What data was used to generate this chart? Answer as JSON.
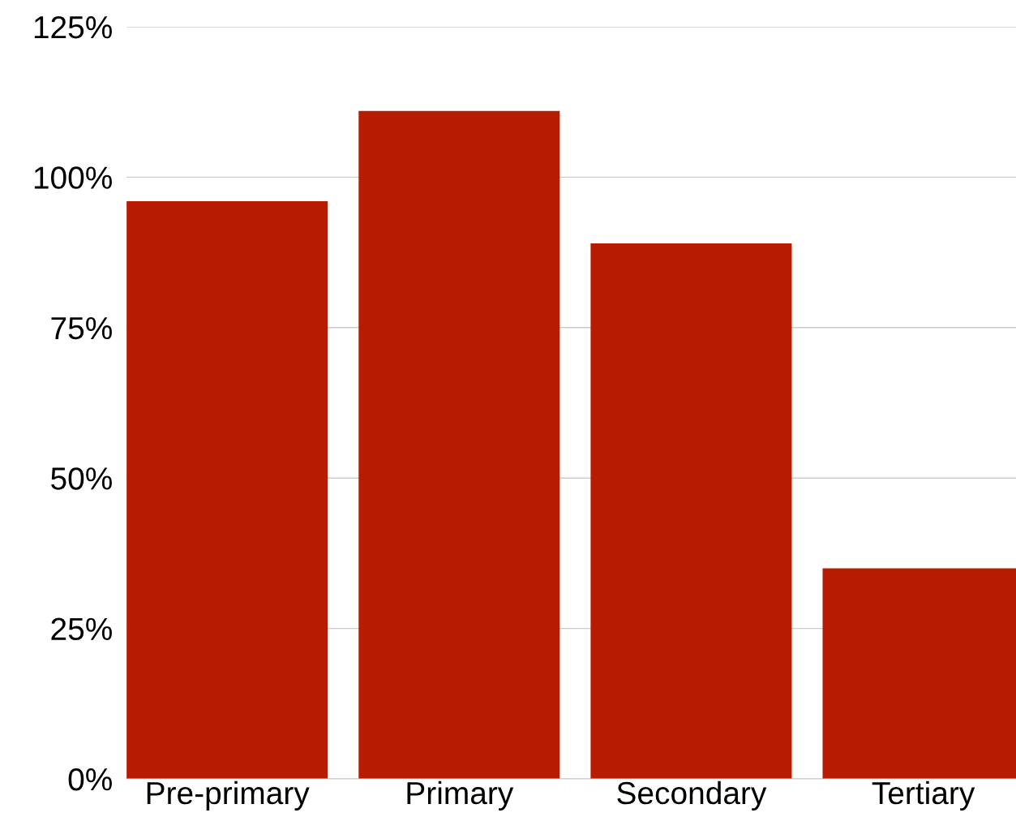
{
  "chart_data": {
    "type": "bar",
    "categories": [
      "Pre-primary",
      "Primary",
      "Secondary",
      "Tertiary"
    ],
    "values": [
      96,
      111,
      89,
      35
    ],
    "color": "#b71c02",
    "ylim": [
      0,
      125
    ],
    "yticks": [
      {
        "value": 0,
        "label": "0%"
      },
      {
        "value": 25,
        "label": "25%"
      },
      {
        "value": 50,
        "label": "50%"
      },
      {
        "value": 75,
        "label": "75%"
      },
      {
        "value": 100,
        "label": "100%"
      },
      {
        "value": 125,
        "label": "125%"
      }
    ],
    "grid": "y"
  }
}
